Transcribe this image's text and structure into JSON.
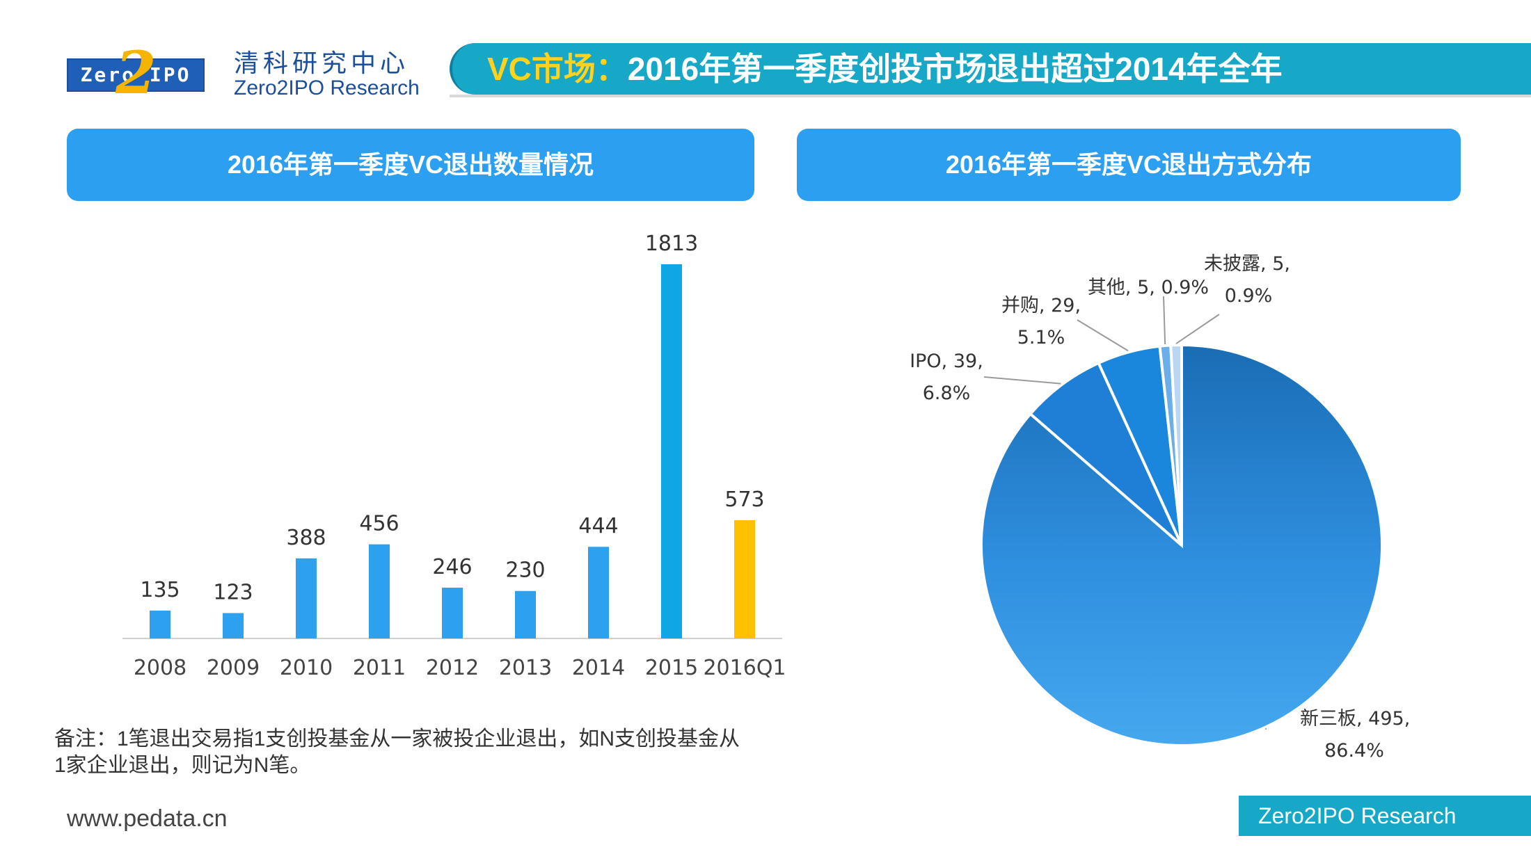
{
  "header": {
    "logo_text": "Zero IPO",
    "logo_two": "2",
    "brand_cn": "清科研究中心",
    "brand_en": "Zero2IPO Research",
    "title_highlight": "VC市场：",
    "title_rest": "2016年第一季度创投市场退出超过2014年全年"
  },
  "colors": {
    "bar": "#2da0ee",
    "bar_2015": "#0fa6e6",
    "bar_highlight": "#ffc000",
    "pie_main": "#2f8fe0",
    "accent": "#17a7c7"
  },
  "chart_data": [
    {
      "type": "bar",
      "title": "2016年第一季度VC退出数量情况",
      "categories": [
        "2008",
        "2009",
        "2010",
        "2011",
        "2012",
        "2013",
        "2014",
        "2015",
        "2016Q1"
      ],
      "values": [
        135,
        123,
        388,
        456,
        246,
        230,
        444,
        1813,
        573
      ],
      "value_labels": [
        "135",
        "123",
        "388",
        "456",
        "246",
        "230",
        "444",
        "1813",
        "573"
      ],
      "highlight_index": 8,
      "ylim": [
        0,
        1900
      ],
      "xlabel": "",
      "ylabel": ""
    },
    {
      "type": "pie",
      "title": "2016年第一季度VC退出方式分布",
      "slices": [
        {
          "name": "新三板",
          "value": 495,
          "percent": 86.4,
          "label_line1": "新三板, 495,",
          "label_line2": "86.4%"
        },
        {
          "name": "IPO",
          "value": 39,
          "percent": 6.8,
          "label_line1": "IPO, 39,",
          "label_line2": "6.8%"
        },
        {
          "name": "并购",
          "value": 29,
          "percent": 5.1,
          "label_line1": "并购, 29,",
          "label_line2": "5.1%"
        },
        {
          "name": "其他",
          "value": 5,
          "percent": 0.9,
          "label_line1": "其他, 5, 0.9%",
          "label_line2": ""
        },
        {
          "name": "未披露",
          "value": 5,
          "percent": 0.9,
          "label_line1": "未披露, 5,",
          "label_line2": "0.9%"
        }
      ]
    }
  ],
  "note": {
    "line1": "备注：1笔退出交易指1支创投基金从一家被投企业退出，如N支创投基金从",
    "line2": "1家企业退出，则记为N笔。"
  },
  "footer": {
    "site": "www.pedata.cn",
    "brand": "Zero2IPO Research"
  }
}
